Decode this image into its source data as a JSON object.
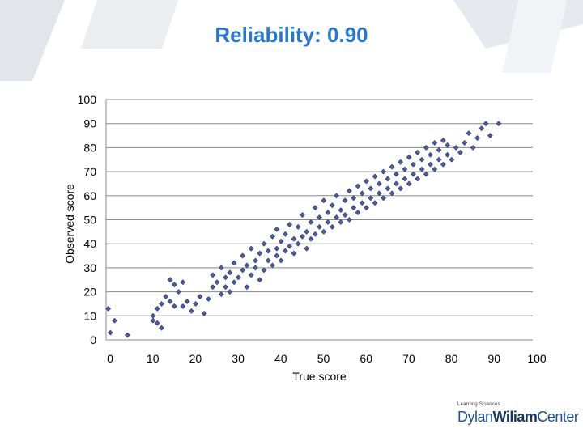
{
  "page": {
    "title": "Reliability: 0.90"
  },
  "logo": {
    "tagline": "Learning Sciences",
    "name_part1": "Dylan",
    "name_part2": "Wiliam",
    "name_part3": "Center"
  },
  "colors": {
    "title": "#2a78c9",
    "point_fill": "#4a5d9a",
    "point_stroke": "#2f3c6d",
    "grid": "#8a8a8a"
  },
  "chart_data": {
    "type": "scatter",
    "title": "Reliability: 0.90",
    "xlabel": "True score",
    "ylabel": "Observed score",
    "xlim": [
      0,
      100
    ],
    "ylim": [
      0,
      100
    ],
    "xticks": [
      0,
      10,
      20,
      30,
      40,
      50,
      60,
      70,
      80,
      90,
      100
    ],
    "yticks": [
      0,
      10,
      20,
      30,
      40,
      50,
      60,
      70,
      80,
      90,
      100
    ],
    "grid": "horizontal",
    "legend": "none",
    "series": [
      {
        "points": [
          [
            0.5,
            13
          ],
          [
            1,
            3
          ],
          [
            2,
            8
          ],
          [
            5,
            2
          ],
          [
            11,
            8
          ],
          [
            11,
            10
          ],
          [
            12,
            7
          ],
          [
            12,
            13
          ],
          [
            13,
            5
          ],
          [
            13,
            15
          ],
          [
            14,
            18
          ],
          [
            15,
            16
          ],
          [
            15,
            25
          ],
          [
            16,
            14
          ],
          [
            16,
            23
          ],
          [
            17,
            20
          ],
          [
            18,
            14
          ],
          [
            18,
            24
          ],
          [
            19,
            16
          ],
          [
            20,
            12
          ],
          [
            21,
            15
          ],
          [
            22,
            18
          ],
          [
            23,
            11
          ],
          [
            24,
            17
          ],
          [
            25,
            22
          ],
          [
            25,
            27
          ],
          [
            26,
            24
          ],
          [
            27,
            19
          ],
          [
            27,
            30
          ],
          [
            28,
            22
          ],
          [
            28,
            26
          ],
          [
            29,
            20
          ],
          [
            29,
            28
          ],
          [
            30,
            24
          ],
          [
            30,
            32
          ],
          [
            31,
            26
          ],
          [
            32,
            29
          ],
          [
            32,
            35
          ],
          [
            33,
            22
          ],
          [
            33,
            31
          ],
          [
            34,
            27
          ],
          [
            34,
            38
          ],
          [
            35,
            30
          ],
          [
            35,
            33
          ],
          [
            36,
            25
          ],
          [
            36,
            36
          ],
          [
            37,
            29
          ],
          [
            37,
            40
          ],
          [
            38,
            33
          ],
          [
            38,
            37
          ],
          [
            39,
            31
          ],
          [
            39,
            43
          ],
          [
            40,
            35
          ],
          [
            40,
            38
          ],
          [
            40,
            46
          ],
          [
            41,
            33
          ],
          [
            41,
            41
          ],
          [
            42,
            37
          ],
          [
            42,
            44
          ],
          [
            43,
            39
          ],
          [
            43,
            48
          ],
          [
            44,
            36
          ],
          [
            44,
            42
          ],
          [
            45,
            40
          ],
          [
            45,
            47
          ],
          [
            46,
            43
          ],
          [
            46,
            52
          ],
          [
            47,
            38
          ],
          [
            47,
            45
          ],
          [
            48,
            42
          ],
          [
            48,
            49
          ],
          [
            49,
            44
          ],
          [
            49,
            55
          ],
          [
            50,
            47
          ],
          [
            50,
            51
          ],
          [
            51,
            45
          ],
          [
            51,
            58
          ],
          [
            52,
            49
          ],
          [
            52,
            53
          ],
          [
            53,
            47
          ],
          [
            53,
            56
          ],
          [
            54,
            51
          ],
          [
            54,
            60
          ],
          [
            55,
            49
          ],
          [
            55,
            54
          ],
          [
            56,
            52
          ],
          [
            56,
            58
          ],
          [
            57,
            50
          ],
          [
            57,
            62
          ],
          [
            58,
            55
          ],
          [
            58,
            59
          ],
          [
            59,
            53
          ],
          [
            59,
            64
          ],
          [
            60,
            57
          ],
          [
            60,
            61
          ],
          [
            61,
            55
          ],
          [
            61,
            66
          ],
          [
            62,
            59
          ],
          [
            62,
            63
          ],
          [
            63,
            57
          ],
          [
            63,
            68
          ],
          [
            64,
            61
          ],
          [
            64,
            65
          ],
          [
            65,
            59
          ],
          [
            65,
            70
          ],
          [
            66,
            63
          ],
          [
            66,
            67
          ],
          [
            67,
            61
          ],
          [
            67,
            72
          ],
          [
            68,
            65
          ],
          [
            68,
            69
          ],
          [
            69,
            63
          ],
          [
            69,
            74
          ],
          [
            70,
            67
          ],
          [
            70,
            71
          ],
          [
            71,
            65
          ],
          [
            71,
            76
          ],
          [
            72,
            69
          ],
          [
            72,
            73
          ],
          [
            73,
            67
          ],
          [
            73,
            78
          ],
          [
            74,
            71
          ],
          [
            74,
            75
          ],
          [
            75,
            69
          ],
          [
            75,
            80
          ],
          [
            76,
            73
          ],
          [
            76,
            77
          ],
          [
            77,
            71
          ],
          [
            77,
            82
          ],
          [
            78,
            75
          ],
          [
            78,
            79
          ],
          [
            79,
            73
          ],
          [
            79,
            83
          ],
          [
            80,
            77
          ],
          [
            80,
            81
          ],
          [
            81,
            75
          ],
          [
            82,
            80
          ],
          [
            83,
            78
          ],
          [
            84,
            82
          ],
          [
            85,
            86
          ],
          [
            86,
            80
          ],
          [
            87,
            84
          ],
          [
            88,
            88
          ],
          [
            89,
            90
          ],
          [
            90,
            85
          ],
          [
            92,
            90
          ]
        ]
      }
    ]
  }
}
